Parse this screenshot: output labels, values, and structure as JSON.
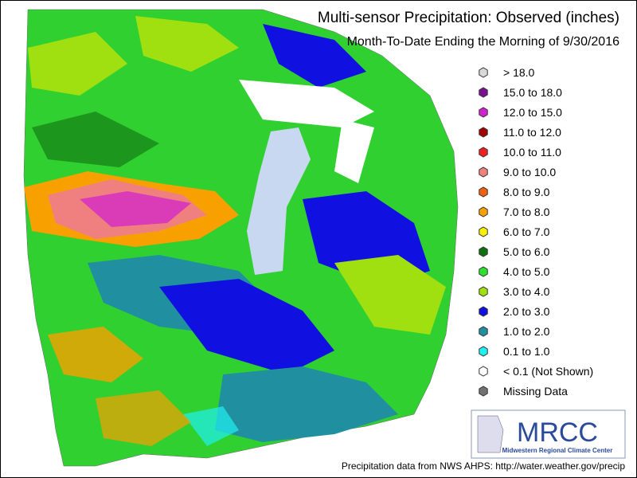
{
  "header": {
    "title": "Multi-sensor Precipitation:  Observed (inches)",
    "subtitle": "Month-To-Date Ending the Morning of 9/30/2016"
  },
  "legend": {
    "entries": [
      {
        "label": "> 18.0",
        "color": "#d8d8d8"
      },
      {
        "label": "15.0 to 18.0",
        "color": "#7a1090"
      },
      {
        "label": "12.0 to 15.0",
        "color": "#d020d0"
      },
      {
        "label": "11.0 to 12.0",
        "color": "#a00000"
      },
      {
        "label": "10.0 to 11.0",
        "color": "#f02020"
      },
      {
        "label": "9.0 to 10.0",
        "color": "#f08080"
      },
      {
        "label": "8.0 to 9.0",
        "color": "#f06010"
      },
      {
        "label": "7.0 to 8.0",
        "color": "#f8a000"
      },
      {
        "label": "6.0 to 7.0",
        "color": "#f8f000"
      },
      {
        "label": "5.0 to 6.0",
        "color": "#107010"
      },
      {
        "label": "4.0 to 5.0",
        "color": "#30e030"
      },
      {
        "label": "3.0 to 4.0",
        "color": "#a0e010"
      },
      {
        "label": "2.0 to 3.0",
        "color": "#1010e0"
      },
      {
        "label": "1.0 to 2.0",
        "color": "#2090a0"
      },
      {
        "label": "0.1 to 1.0",
        "color": "#20f0f0"
      },
      {
        "label": "< 0.1 (Not Shown)",
        "color": "#ffffff"
      },
      {
        "label": "Missing Data",
        "color": "#707070"
      }
    ]
  },
  "logo": {
    "name": "MRCC",
    "full_name": "Midwestern Regional Climate Center"
  },
  "footer": {
    "source": "Precipitation data from NWS AHPS: http://water.weather.gov/precip"
  }
}
